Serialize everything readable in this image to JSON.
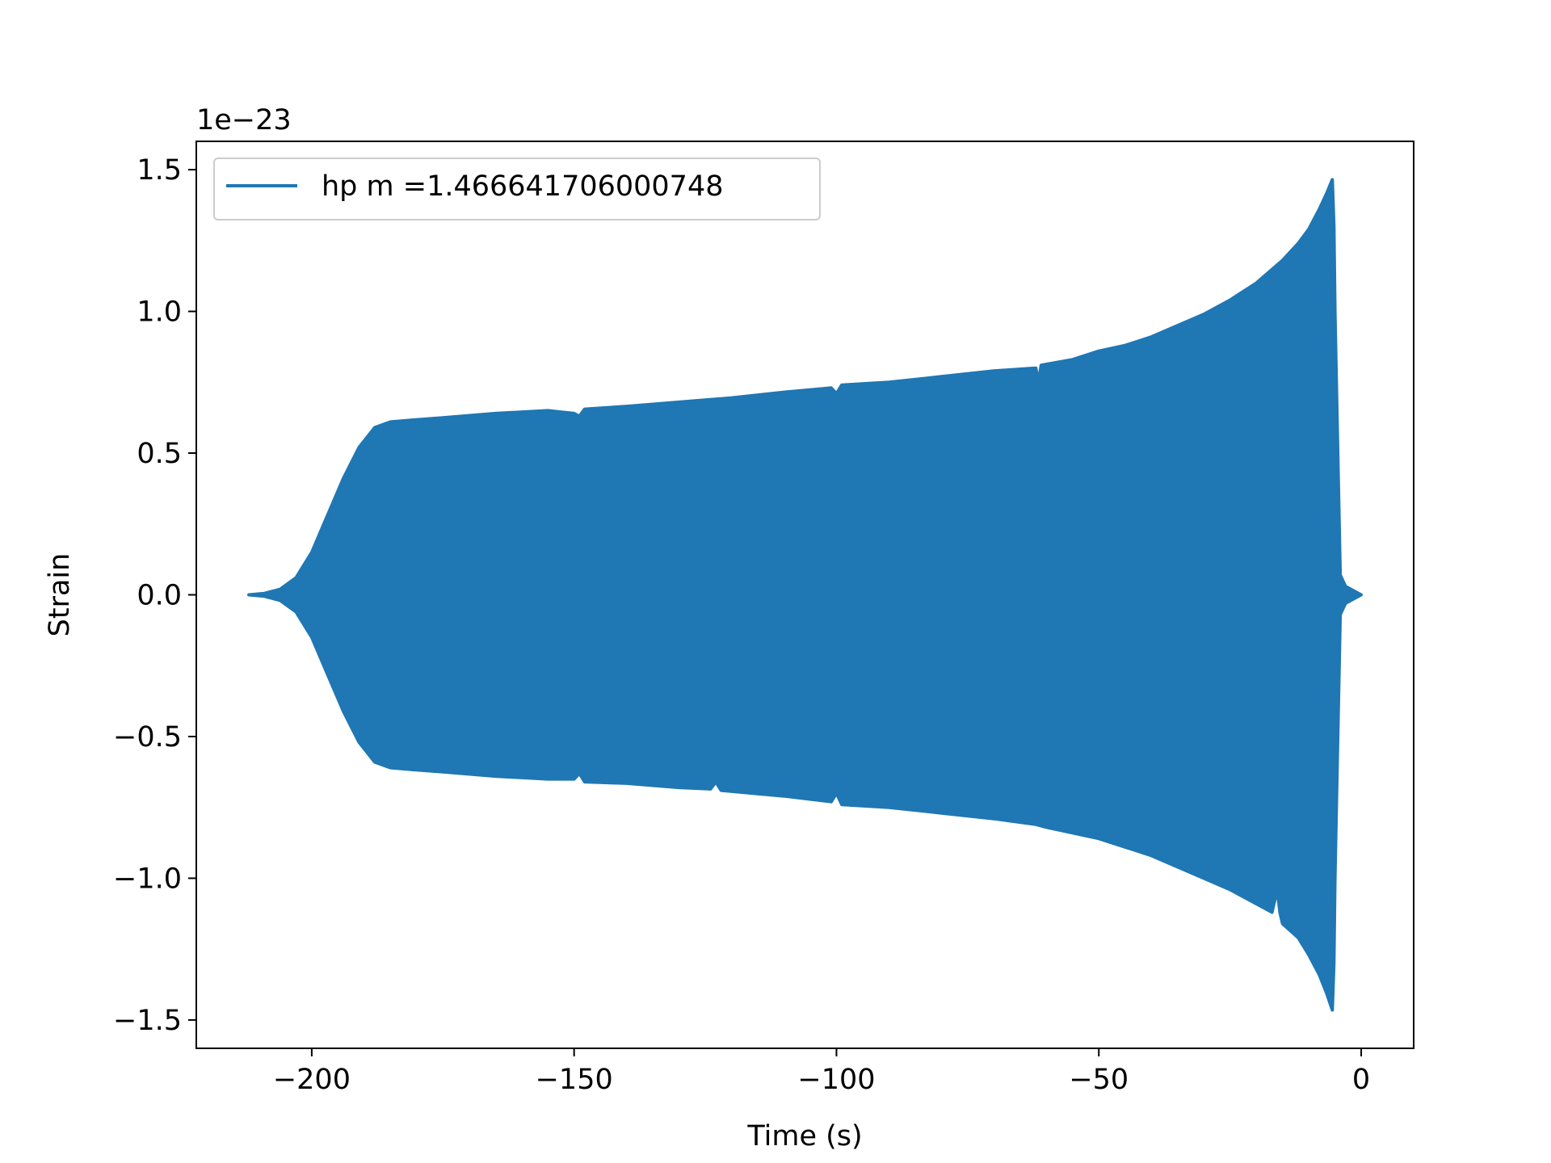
{
  "chart_data": {
    "type": "line",
    "title": "",
    "xlabel": "Time (s)",
    "ylabel": "Strain",
    "y_scale_label": "1e−23",
    "xlim": [
      -222,
      10
    ],
    "ylim": [
      -1.6,
      1.6
    ],
    "x_ticks": [
      -200,
      -150,
      -100,
      -50,
      0
    ],
    "x_tick_labels": [
      "−200",
      "−150",
      "−100",
      "−50",
      "0"
    ],
    "y_ticks": [
      -1.5,
      -1.0,
      -0.5,
      0.0,
      0.5,
      1.0,
      1.5
    ],
    "y_tick_labels": [
      "−1.5",
      "−1.0",
      "−0.5",
      "0.0",
      "0.5",
      "1.0",
      "1.5"
    ],
    "grid": false,
    "legend_position": "upper-left",
    "series": [
      {
        "name": "hp m =1.466641706000748",
        "color": "#1f77b4",
        "envelope_upper": {
          "x": [
            -212,
            -209,
            -206,
            -203,
            -200,
            -197,
            -194,
            -191,
            -188,
            -185,
            -182,
            -175,
            -165,
            -155,
            -150,
            -149,
            -148,
            -140,
            -130,
            -120,
            -110,
            -101,
            -100,
            -99,
            -90,
            -80,
            -70,
            -62,
            -61.5,
            -61,
            -55,
            -50,
            -45,
            -40,
            -35,
            -30,
            -25,
            -20,
            -15,
            -12,
            -10,
            -8,
            -6.5,
            -5.5,
            -5.2,
            -5,
            -4,
            -3,
            -2,
            -1,
            0
          ],
          "y": [
            0.0,
            0.005,
            0.02,
            0.06,
            0.15,
            0.28,
            0.41,
            0.52,
            0.59,
            0.61,
            0.615,
            0.625,
            0.64,
            0.65,
            0.64,
            0.63,
            0.655,
            0.665,
            0.68,
            0.695,
            0.715,
            0.73,
            0.71,
            0.74,
            0.75,
            0.77,
            0.79,
            0.8,
            0.75,
            0.81,
            0.83,
            0.86,
            0.88,
            0.91,
            0.95,
            0.99,
            1.04,
            1.1,
            1.18,
            1.24,
            1.29,
            1.36,
            1.42,
            1.465,
            1.3,
            1.0,
            0.07,
            0.03,
            0.02,
            0.01,
            0.0
          ]
        },
        "envelope_lower": {
          "x": [
            -212,
            -209,
            -206,
            -203,
            -200,
            -197,
            -194,
            -191,
            -188,
            -185,
            -182,
            -175,
            -165,
            -155,
            -150,
            -149,
            -148,
            -140,
            -130,
            -124,
            -123,
            -122,
            -110,
            -101,
            -100,
            -99,
            -90,
            -80,
            -70,
            -62,
            -60,
            -55,
            -50,
            -45,
            -40,
            -35,
            -30,
            -25,
            -20,
            -17,
            -16,
            -15.5,
            -15,
            -12,
            -10,
            -8,
            -6.5,
            -5.5,
            -5.2,
            -5,
            -4,
            -3,
            -2,
            -1,
            0
          ],
          "y": [
            0.0,
            -0.005,
            -0.02,
            -0.06,
            -0.15,
            -0.28,
            -0.41,
            -0.52,
            -0.59,
            -0.61,
            -0.615,
            -0.625,
            -0.64,
            -0.65,
            -0.65,
            -0.63,
            -0.66,
            -0.665,
            -0.68,
            -0.685,
            -0.66,
            -0.69,
            -0.71,
            -0.73,
            -0.7,
            -0.74,
            -0.75,
            -0.77,
            -0.79,
            -0.81,
            -0.82,
            -0.84,
            -0.86,
            -0.89,
            -0.92,
            -0.96,
            -1.0,
            -1.04,
            -1.09,
            -1.12,
            -1.04,
            -1.12,
            -1.16,
            -1.21,
            -1.27,
            -1.34,
            -1.41,
            -1.465,
            -1.3,
            -1.0,
            -0.07,
            -0.03,
            -0.02,
            -0.01,
            0.0
          ]
        }
      }
    ]
  }
}
